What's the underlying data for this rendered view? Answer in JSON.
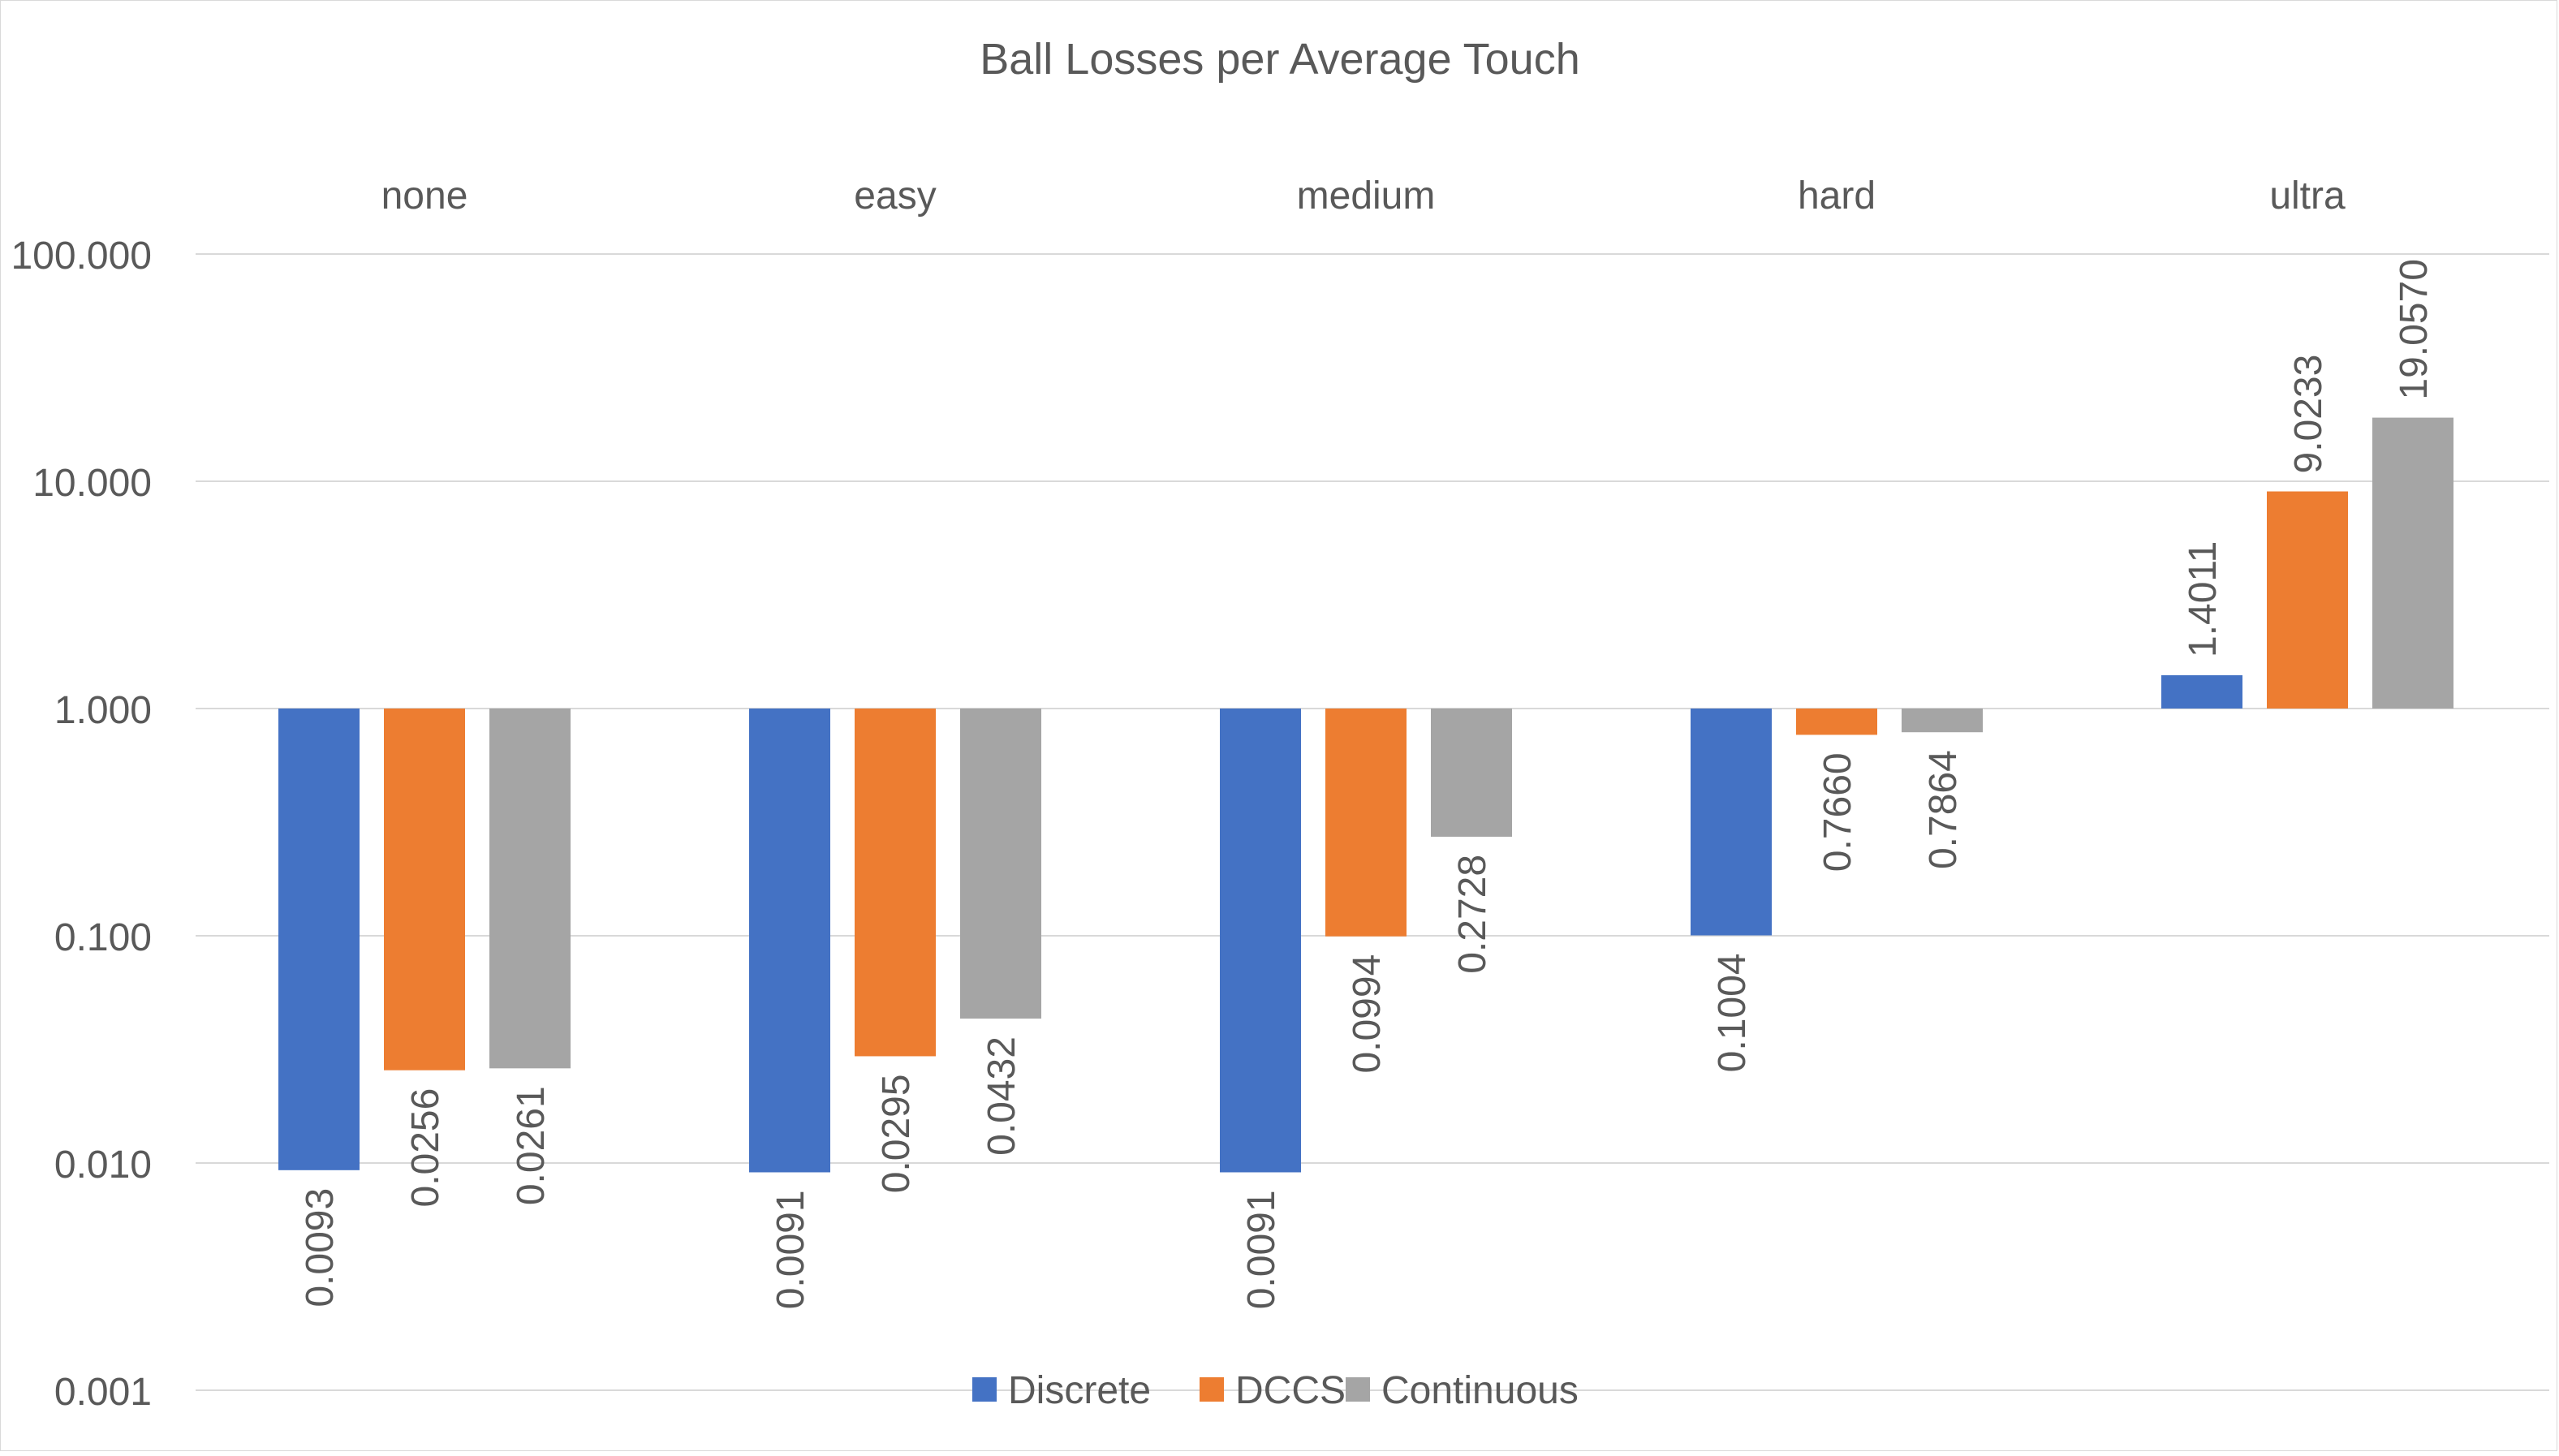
{
  "chart_data": {
    "type": "bar",
    "title": "Ball Losses per Average Touch",
    "categories": [
      "none",
      "easy",
      "medium",
      "hard",
      "ultra"
    ],
    "series": [
      {
        "name": "Discrete",
        "color": "#4472C4",
        "values": [
          0.0093,
          0.0091,
          0.0091,
          0.1004,
          1.4011
        ],
        "labels": [
          "0.0093",
          "0.0091",
          "0.0091",
          "0.1004",
          "1.4011"
        ]
      },
      {
        "name": "DCCS",
        "color": "#ED7D31",
        "values": [
          0.0256,
          0.0295,
          0.0994,
          0.766,
          9.0233
        ],
        "labels": [
          "0.0256",
          "0.0295",
          "0.0994",
          "0.7660",
          "9.0233"
        ]
      },
      {
        "name": "Continuous",
        "color": "#A5A5A5",
        "values": [
          0.0261,
          0.0432,
          0.2728,
          0.7864,
          19.057
        ],
        "labels": [
          "0.0261",
          "0.0432",
          "0.2728",
          "0.7864",
          "19.0570"
        ]
      }
    ],
    "y_scale": "log",
    "ylim": [
      0.001,
      100
    ],
    "y_ticks": [
      100,
      10,
      1,
      0.1,
      0.01,
      0.001
    ],
    "y_tick_labels": [
      "100.000",
      "10.000",
      "1.000",
      "0.100",
      "0.010",
      "0.001"
    ],
    "category_labels_position": "top",
    "bars_from": 1,
    "grid": true,
    "legend_position": "bottom",
    "gridline_color": "#d9d9d9",
    "text_color": "#595959"
  }
}
